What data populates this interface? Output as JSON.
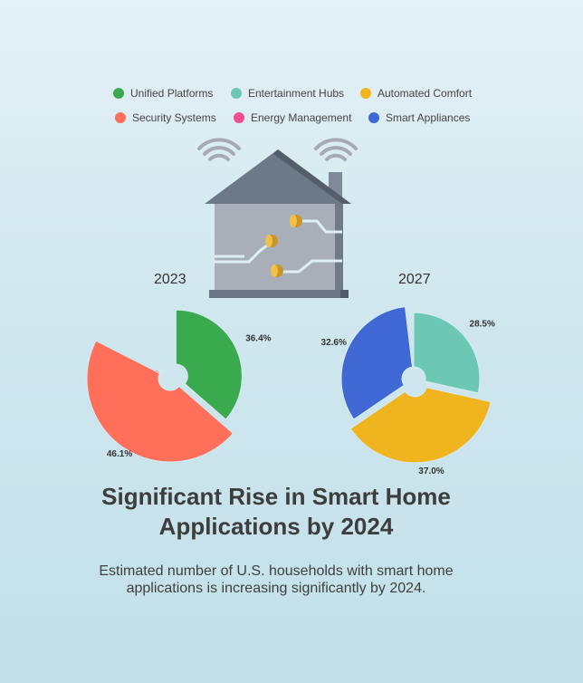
{
  "title": "Significant Rise in Smart Home Applications by 2024",
  "subtitle": "Estimated number of U.S. households with smart home applications is increasing significantly by 2024.",
  "legend": [
    {
      "label": "Unified Platforms",
      "color": "#3aaa4f"
    },
    {
      "label": "Entertainment Hubs",
      "color": "#6cc7b5"
    },
    {
      "label": "Automated Comfort",
      "color": "#f0b41e"
    },
    {
      "label": "Security Systems",
      "color": "#ff6f5a"
    },
    {
      "label": "Energy Management",
      "color": "#ef4f8f"
    },
    {
      "label": "Smart Appliances",
      "color": "#4068d4"
    }
  ],
  "icon": "smart-house-icon",
  "chart_data": [
    {
      "type": "pie",
      "title": "2023",
      "slices": [
        {
          "label": "Unified Platforms",
          "value": 36.4,
          "value_label": "36.4%",
          "color": "#3aaa4f"
        },
        {
          "label": "Security Systems",
          "value": 46.1,
          "value_label": "46.1%",
          "color": "#ff6f5a"
        },
        {
          "label": "Energy Management",
          "value": 1.5,
          "value_label": "",
          "color": "#ef4f8f"
        },
        {
          "label": "Smart Appliances",
          "value": 2.0,
          "value_label": "",
          "color": "#4068d4"
        }
      ]
    },
    {
      "type": "pie",
      "title": "2027",
      "slices": [
        {
          "label": "Entertainment Hubs",
          "value": 28.5,
          "value_label": "28.5%",
          "color": "#6cc7b5"
        },
        {
          "label": "Automated Comfort",
          "value": 37.0,
          "value_label": "37.0%",
          "color": "#f0b41e"
        },
        {
          "label": "Smart Appliances",
          "value": 32.6,
          "value_label": "32.6%",
          "color": "#4068d4"
        }
      ]
    }
  ]
}
